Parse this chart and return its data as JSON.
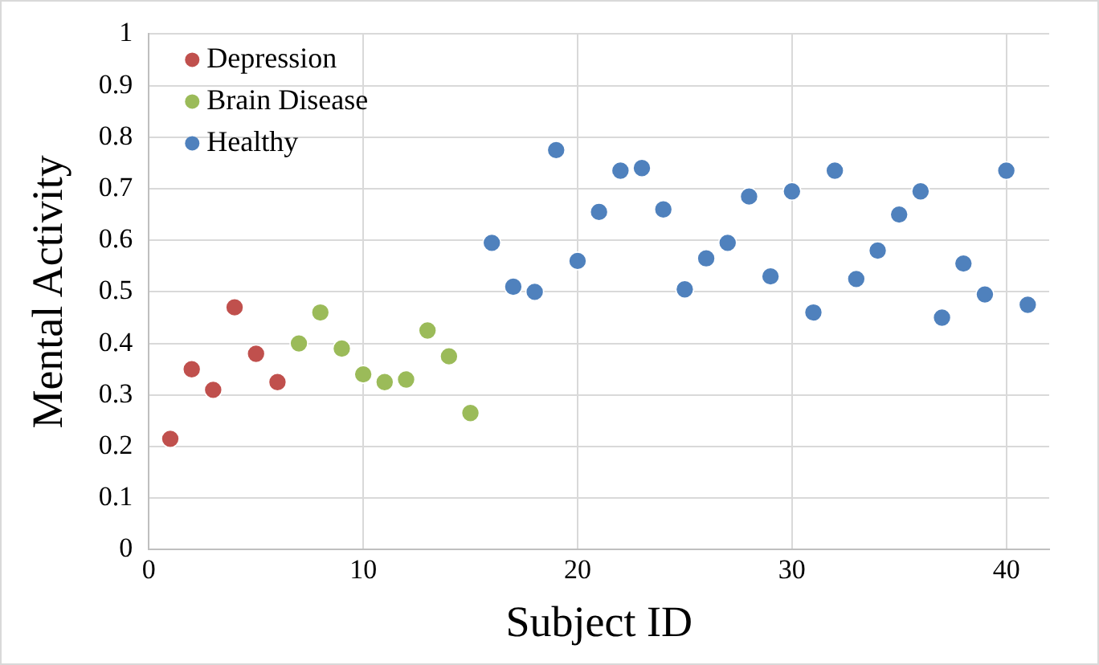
{
  "chart_data": {
    "type": "scatter",
    "xlabel": "Subject ID",
    "ylabel": "Mental Activity",
    "xlim": [
      0,
      42
    ],
    "xticks": [
      0,
      10,
      20,
      30,
      40
    ],
    "ylim": [
      0,
      1
    ],
    "yticks": [
      0,
      0.1,
      0.2,
      0.3,
      0.4,
      0.5,
      0.6,
      0.7,
      0.8,
      0.9,
      1
    ],
    "grid": true,
    "legend": "top left",
    "marker": "circle",
    "series": [
      {
        "name": "Depression",
        "color": "#c0504d",
        "x": [
          1,
          2,
          3,
          4,
          5,
          6
        ],
        "values": [
          0.215,
          0.35,
          0.31,
          0.47,
          0.38,
          0.325
        ]
      },
      {
        "name": "Brain Disease",
        "color": "#9bbb59",
        "x": [
          7,
          8,
          9,
          10,
          11,
          12,
          13,
          14,
          15
        ],
        "values": [
          0.4,
          0.46,
          0.39,
          0.34,
          0.325,
          0.33,
          0.425,
          0.375,
          0.265
        ]
      },
      {
        "name": "Healthy",
        "color": "#4f81bd",
        "x": [
          16,
          17,
          18,
          19,
          20,
          21,
          22,
          23,
          24,
          25,
          26,
          27,
          28,
          29,
          30,
          31,
          32,
          33,
          34,
          35,
          36,
          37,
          38,
          39,
          40,
          41
        ],
        "values": [
          0.595,
          0.51,
          0.5,
          0.775,
          0.56,
          0.655,
          0.735,
          0.74,
          0.66,
          0.505,
          0.565,
          0.595,
          0.685,
          0.53,
          0.695,
          0.46,
          0.735,
          0.525,
          0.58,
          0.65,
          0.695,
          0.45,
          0.555,
          0.495,
          0.735,
          0.475
        ]
      }
    ]
  }
}
